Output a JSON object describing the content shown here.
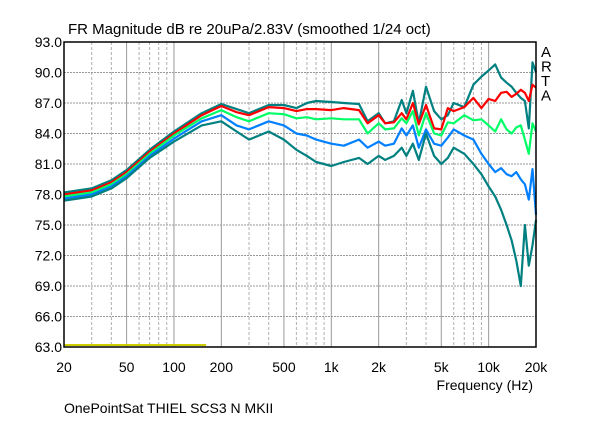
{
  "chart_data": {
    "type": "line",
    "title": "FR Magnitude dB re 20uPa/2.83V (smoothed 1/24 oct)",
    "xlabel": "Frequency (Hz)",
    "ylabel": "",
    "caption": "OnePointSat THIEL SCS3 N MKII",
    "watermark": "ARTA",
    "x_scale": "log",
    "xlim": [
      20,
      20000
    ],
    "ylim": [
      63,
      93
    ],
    "grid": true,
    "x_ticks": [
      {
        "value": 20,
        "label": "20"
      },
      {
        "value": 50,
        "label": "50"
      },
      {
        "value": 100,
        "label": "100"
      },
      {
        "value": 200,
        "label": "200"
      },
      {
        "value": 500,
        "label": "500"
      },
      {
        "value": 1000,
        "label": "1k"
      },
      {
        "value": 2000,
        "label": "2k"
      },
      {
        "value": 5000,
        "label": "5k"
      },
      {
        "value": 10000,
        "label": "10k"
      },
      {
        "value": 20000,
        "label": "20k"
      }
    ],
    "y_ticks": [
      {
        "value": 93,
        "label": "93.0"
      },
      {
        "value": 90,
        "label": "90.0"
      },
      {
        "value": 87,
        "label": "87.0"
      },
      {
        "value": 84,
        "label": "84.0"
      },
      {
        "value": 81,
        "label": "81.0"
      },
      {
        "value": 78,
        "label": "78.0"
      },
      {
        "value": 75,
        "label": "75.0"
      },
      {
        "value": 72,
        "label": "72.0"
      },
      {
        "value": 69,
        "label": "69.0"
      },
      {
        "value": 66,
        "label": "66.0"
      },
      {
        "value": 63,
        "label": "63.0"
      }
    ],
    "series": [
      {
        "name": "teal-top",
        "color": "#008080",
        "x": [
          20,
          30,
          40,
          50,
          70,
          100,
          150,
          200,
          250,
          300,
          400,
          500,
          600,
          700,
          800,
          1000,
          1200,
          1500,
          1700,
          2000,
          2200,
          2500,
          2800,
          3000,
          3300,
          3600,
          4000,
          4500,
          5000,
          5500,
          6000,
          7000,
          8000,
          9000,
          10000,
          11000,
          12000,
          13000,
          14000,
          15000,
          16000,
          17000,
          18000,
          19000,
          20000
        ],
        "y": [
          78.2,
          78.6,
          79.4,
          80.4,
          82.4,
          84.2,
          86.0,
          86.9,
          86.4,
          86.0,
          86.8,
          86.8,
          86.5,
          87.0,
          87.2,
          87.1,
          87.0,
          86.9,
          85.2,
          86.0,
          85.0,
          85.2,
          87.3,
          86.0,
          88.2,
          85.0,
          88.6,
          86.2,
          85.4,
          85.8,
          87.0,
          86.6,
          88.8,
          89.6,
          90.2,
          90.8,
          89.5,
          89.0,
          88.6,
          88.0,
          87.5,
          87.2,
          84.5,
          91.0,
          90.0
        ]
      },
      {
        "name": "red",
        "color": "#ff0000",
        "x": [
          20,
          30,
          40,
          50,
          70,
          100,
          150,
          200,
          250,
          300,
          400,
          500,
          600,
          700,
          800,
          1000,
          1200,
          1500,
          1700,
          2000,
          2200,
          2500,
          2800,
          3000,
          3300,
          3600,
          4000,
          4500,
          5000,
          5500,
          6000,
          7000,
          8000,
          9000,
          10000,
          11000,
          12000,
          13000,
          14000,
          15000,
          16000,
          17000,
          18000,
          19000,
          20000
        ],
        "y": [
          78.0,
          78.4,
          79.2,
          80.2,
          82.2,
          84.0,
          85.8,
          86.7,
          86.1,
          85.8,
          86.6,
          86.5,
          86.2,
          86.4,
          86.4,
          86.3,
          86.5,
          86.3,
          85.0,
          85.8,
          85.0,
          85.1,
          86.0,
          85.4,
          87.0,
          84.9,
          86.8,
          84.5,
          84.4,
          86.5,
          86.2,
          86.6,
          87.5,
          86.5,
          87.4,
          87.2,
          88.0,
          88.1,
          87.6,
          87.9,
          88.3,
          88.0,
          87.2,
          88.8,
          88.5
        ]
      },
      {
        "name": "green",
        "color": "#00ff66",
        "x": [
          20,
          30,
          40,
          50,
          70,
          100,
          150,
          200,
          250,
          300,
          400,
          500,
          600,
          700,
          800,
          1000,
          1200,
          1500,
          1700,
          2000,
          2200,
          2500,
          2800,
          3000,
          3300,
          3600,
          4000,
          4500,
          5000,
          5500,
          6000,
          7000,
          8000,
          9000,
          10000,
          11000,
          12000,
          13000,
          14000,
          15000,
          16000,
          17000,
          18000,
          19000,
          20000
        ],
        "y": [
          77.8,
          78.2,
          79.0,
          80.0,
          82.0,
          83.8,
          85.5,
          86.3,
          85.6,
          85.2,
          86.0,
          85.9,
          85.5,
          85.6,
          85.4,
          85.5,
          85.4,
          85.4,
          84.0,
          85.0,
          84.4,
          84.5,
          85.5,
          85.0,
          86.2,
          83.8,
          86.0,
          84.0,
          83.8,
          85.1,
          85.0,
          85.8,
          85.3,
          85.4,
          84.8,
          84.2,
          85.4,
          84.4,
          84.0,
          84.6,
          84.8,
          83.4,
          82.0,
          85.0,
          84.2
        ]
      },
      {
        "name": "blue",
        "color": "#0080ff",
        "x": [
          20,
          30,
          40,
          50,
          70,
          100,
          150,
          200,
          250,
          300,
          400,
          500,
          600,
          700,
          800,
          1000,
          1200,
          1500,
          1700,
          2000,
          2200,
          2500,
          2800,
          3000,
          3300,
          3600,
          4000,
          4500,
          5000,
          5500,
          6000,
          7000,
          8000,
          9000,
          10000,
          11000,
          12000,
          13000,
          14000,
          15000,
          16000,
          17000,
          18000,
          19000,
          20000
        ],
        "y": [
          77.6,
          78.0,
          78.8,
          79.8,
          81.8,
          83.5,
          85.2,
          85.8,
          84.8,
          84.4,
          85.2,
          84.8,
          84.0,
          83.8,
          83.4,
          83.0,
          82.8,
          83.4,
          82.6,
          83.2,
          82.8,
          83.0,
          84.5,
          83.8,
          84.8,
          82.6,
          84.4,
          83.0,
          82.8,
          83.6,
          84.4,
          83.8,
          83.4,
          82.0,
          81.0,
          80.2,
          80.6,
          80.0,
          79.8,
          80.2,
          79.5,
          79.0,
          77.5,
          80.5,
          76.0
        ]
      },
      {
        "name": "teal-bottom",
        "color": "#008080",
        "x": [
          20,
          30,
          40,
          50,
          70,
          100,
          150,
          200,
          250,
          300,
          400,
          500,
          600,
          700,
          800,
          1000,
          1200,
          1500,
          1700,
          2000,
          2200,
          2500,
          2800,
          3000,
          3300,
          3600,
          4000,
          4500,
          5000,
          5500,
          6000,
          7000,
          8000,
          9000,
          10000,
          11000,
          12000,
          13000,
          14000,
          15000,
          16000,
          17000,
          18000,
          19000,
          20000
        ],
        "y": [
          77.4,
          77.8,
          78.6,
          79.6,
          81.6,
          83.2,
          84.8,
          85.2,
          84.2,
          83.4,
          84.2,
          83.4,
          82.4,
          81.8,
          81.2,
          80.8,
          81.2,
          81.6,
          81.0,
          81.8,
          81.4,
          81.8,
          82.6,
          81.8,
          83.0,
          81.4,
          84.0,
          81.8,
          81.0,
          81.6,
          82.6,
          82.0,
          81.0,
          80.0,
          78.8,
          77.8,
          76.5,
          75.0,
          73.5,
          71.5,
          69.0,
          75.0,
          71.0,
          73.0,
          75.5
        ]
      },
      {
        "name": "noise-floor",
        "color": "#cccc00",
        "x": [
          20,
          160
        ],
        "y": [
          63.2,
          63.2
        ]
      }
    ]
  }
}
